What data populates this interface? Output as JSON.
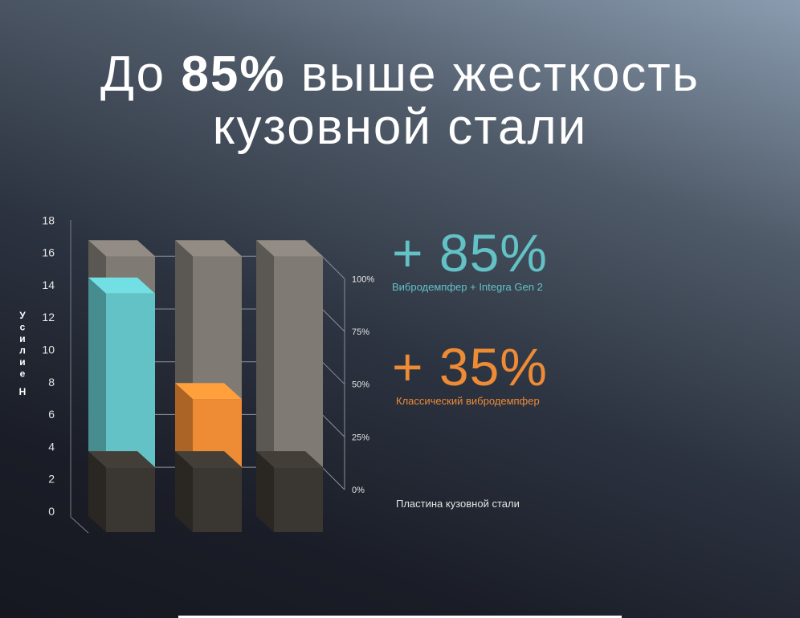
{
  "title": {
    "prefix": "До ",
    "highlight": "85%",
    "suffix": " выше жесткость",
    "line2": "кузовной стали"
  },
  "stats": [
    {
      "value": "+ 85%",
      "label": "Вибродемпфер + Integra Gen 2",
      "color": "#62c2c6"
    },
    {
      "value": "+ 35%",
      "label": "Классический вибродемпфер",
      "color": "#ee8b35"
    },
    {
      "label": "Пластина кузовной стали",
      "color": "#e4e4e4"
    }
  ],
  "chart_data": {
    "type": "bar",
    "categories": [
      "",
      "",
      ""
    ],
    "ylabel": "Усилие Н",
    "ylim": [
      0,
      18
    ],
    "y_ticks": [
      "0",
      "2",
      "4",
      "6",
      "8",
      "10",
      "12",
      "14",
      "16",
      "18"
    ],
    "y2_ticks": [
      "0%",
      "25%",
      "50%",
      "75%",
      "100%"
    ],
    "max_value": 17,
    "series": [
      {
        "name": "Пластина кузовной стали",
        "values": [
          4,
          4,
          4
        ],
        "color": "#3a3631"
      },
      {
        "name": "Вибродемпфер + Integra Gen 2",
        "values": [
          10.7,
          0,
          0
        ],
        "color": "#62c2c6"
      },
      {
        "name": "Классический вибродемпфер",
        "values": [
          0,
          4.2,
          0
        ],
        "color": "#ee8b35"
      }
    ],
    "grid": true
  }
}
